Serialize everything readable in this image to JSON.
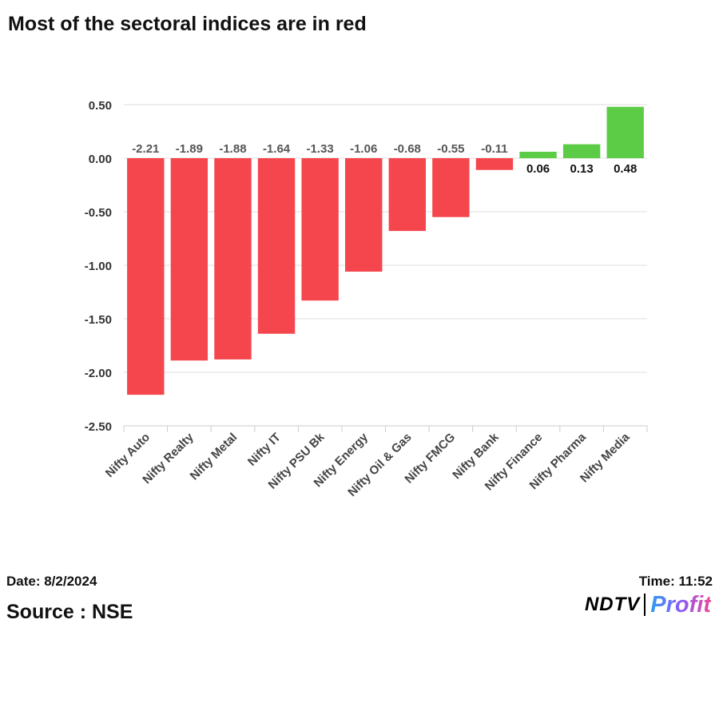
{
  "title": "Most of the sectoral indices are in red",
  "footer": {
    "date": "Date: 8/2/2024",
    "source": "Source : NSE",
    "time": "Time: 11:52",
    "logo_left": "NDTV",
    "logo_right": "Profit"
  },
  "colors": {
    "negative": "#f5454d",
    "positive": "#5ccc47",
    "grid": "#dddddd"
  },
  "chart_data": {
    "type": "bar",
    "title": "Most of the sectoral indices are in red",
    "xlabel": "",
    "ylabel": "",
    "ylim": [
      -2.5,
      0.5
    ],
    "yticks": [
      "0.50",
      "0.00",
      "-0.50",
      "-1.00",
      "-1.50",
      "-2.00",
      "-2.50"
    ],
    "categories": [
      "Nifty Auto",
      "Nifty Realty",
      "Nifty Metal",
      "Nifty IT",
      "Nifty PSU Bk",
      "Nifty Energy",
      "Nifty Oil & Gas",
      "Nifty FMCG",
      "Nifty Bank",
      "Nifty Finance",
      "Nifty Pharma",
      "Nifty Media"
    ],
    "values": [
      -2.21,
      -1.89,
      -1.88,
      -1.64,
      -1.33,
      -1.06,
      -0.68,
      -0.55,
      -0.11,
      0.06,
      0.13,
      0.48
    ],
    "value_labels": [
      "-2.21",
      "-1.89",
      "-1.88",
      "-1.64",
      "-1.33",
      "-1.06",
      "-0.68",
      "-0.55",
      "-0.11",
      "0.06",
      "0.13",
      "0.48"
    ],
    "grid": true,
    "legend": "none"
  }
}
